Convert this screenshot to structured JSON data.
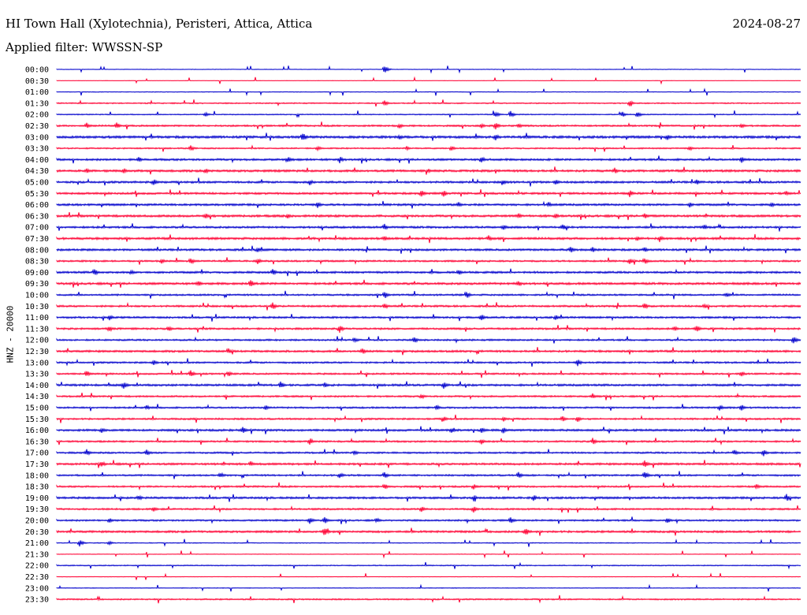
{
  "header": {
    "title": "HI Town Hall (Xylotechnia), Peristeri, Attica, Attica",
    "date": "2024-08-27",
    "filter": "Applied filter: WWSSN-SP"
  },
  "chart_data": {
    "type": "line",
    "ylabel": "HNZ - 20000",
    "colors": [
      "#0000cc",
      "#ff0033"
    ],
    "rows": [
      "00:00",
      "00:30",
      "01:00",
      "01:30",
      "02:00",
      "02:30",
      "03:00",
      "03:30",
      "04:00",
      "04:30",
      "05:00",
      "05:30",
      "06:00",
      "06:30",
      "07:00",
      "07:30",
      "08:00",
      "08:30",
      "09:00",
      "09:30",
      "10:00",
      "10:30",
      "11:00",
      "11:30",
      "12:00",
      "12:30",
      "13:00",
      "13:30",
      "14:00",
      "14:30",
      "15:00",
      "15:30",
      "16:00",
      "16:30",
      "17:00",
      "17:30",
      "18:00",
      "18:30",
      "19:00",
      "19:30",
      "20:00",
      "20:30",
      "21:00",
      "21:30",
      "22:00",
      "22:30",
      "23:00",
      "23:30"
    ],
    "noise_level": [
      0.3,
      0.2,
      0.4,
      0.7,
      0.6,
      1.0,
      1.4,
      0.8,
      1.2,
      1.3,
      1.2,
      1.2,
      1.2,
      1.3,
      1.2,
      1.3,
      1.2,
      1.0,
      1.2,
      1.3,
      1.0,
      1.1,
      1.1,
      1.1,
      1.0,
      1.2,
      1.0,
      1.0,
      1.2,
      1.0,
      1.0,
      1.0,
      1.2,
      1.0,
      1.0,
      1.2,
      1.0,
      1.0,
      1.2,
      1.0,
      1.0,
      1.2,
      0.5,
      0.3,
      0.6,
      0.3,
      0.4,
      0.8
    ],
    "events": [
      [
        [
          0.44,
          6
        ]
      ],
      [],
      [],
      [
        [
          0.44,
          5
        ],
        [
          0.77,
          4
        ]
      ],
      [
        [
          0.2,
          3
        ],
        [
          0.59,
          4
        ],
        [
          0.61,
          5
        ],
        [
          0.76,
          4
        ],
        [
          0.78,
          5
        ]
      ],
      [
        [
          0.04,
          4
        ],
        [
          0.08,
          5
        ],
        [
          0.46,
          4
        ],
        [
          0.57,
          4
        ],
        [
          0.59,
          5
        ],
        [
          0.62,
          4
        ],
        [
          0.92,
          4
        ]
      ],
      [
        [
          0.33,
          7
        ],
        [
          0.46,
          4
        ],
        [
          0.59,
          5
        ],
        [
          0.82,
          5
        ]
      ],
      [
        [
          0.18,
          4
        ],
        [
          0.35,
          4
        ],
        [
          0.47,
          3
        ],
        [
          0.53,
          4
        ],
        [
          0.85,
          4
        ]
      ],
      [
        [
          0.11,
          4
        ],
        [
          0.31,
          5
        ],
        [
          0.38,
          5
        ],
        [
          0.57,
          6
        ],
        [
          0.92,
          5
        ]
      ],
      [
        [
          0.04,
          4
        ],
        [
          0.09,
          4
        ],
        [
          0.2,
          4
        ],
        [
          0.5,
          3
        ],
        [
          0.75,
          4
        ]
      ],
      [
        [
          0.13,
          5
        ],
        [
          0.34,
          4
        ],
        [
          0.6,
          4
        ],
        [
          0.67,
          5
        ],
        [
          0.86,
          4
        ]
      ],
      [
        [
          0.49,
          6
        ],
        [
          0.52,
          5
        ],
        [
          0.77,
          5
        ],
        [
          0.98,
          4
        ]
      ],
      [
        [
          0.35,
          5
        ],
        [
          0.54,
          4
        ],
        [
          0.66,
          5
        ],
        [
          0.85,
          4
        ],
        [
          0.96,
          4
        ]
      ],
      [
        [
          0.2,
          4
        ],
        [
          0.31,
          4
        ],
        [
          0.62,
          4
        ],
        [
          0.67,
          4
        ],
        [
          0.79,
          4
        ]
      ],
      [
        [
          0.44,
          5
        ],
        [
          0.6,
          4
        ],
        [
          0.68,
          5
        ],
        [
          0.87,
          4
        ]
      ],
      [
        [
          0.44,
          4
        ],
        [
          0.58,
          5
        ],
        [
          0.78,
          4
        ],
        [
          0.81,
          5
        ]
      ],
      [
        [
          0.27,
          4
        ],
        [
          0.69,
          5
        ],
        [
          0.72,
          4
        ],
        [
          0.79,
          4
        ]
      ],
      [
        [
          0.14,
          4
        ],
        [
          0.18,
          5
        ],
        [
          0.27,
          4
        ],
        [
          0.77,
          4
        ],
        [
          0.79,
          5
        ]
      ],
      [
        [
          0.05,
          6
        ],
        [
          0.1,
          4
        ],
        [
          0.29,
          5
        ],
        [
          0.54,
          4
        ]
      ],
      [
        [
          0.19,
          5
        ],
        [
          0.26,
          6
        ],
        [
          0.62,
          5
        ]
      ],
      [
        [
          0.44,
          6
        ],
        [
          0.55,
          6
        ],
        [
          0.9,
          4
        ]
      ],
      [
        [
          0.29,
          5
        ],
        [
          0.44,
          5
        ],
        [
          0.79,
          5
        ],
        [
          0.87,
          4
        ]
      ],
      [
        [
          0.07,
          5
        ],
        [
          0.57,
          5
        ],
        [
          0.67,
          4
        ]
      ],
      [
        [
          0.07,
          5
        ],
        [
          0.15,
          4
        ],
        [
          0.38,
          6
        ],
        [
          0.83,
          4
        ],
        [
          0.86,
          5
        ]
      ],
      [
        [
          0.4,
          4
        ],
        [
          0.48,
          5
        ],
        [
          0.99,
          6
        ]
      ],
      [
        [
          0.23,
          5
        ],
        [
          0.41,
          5
        ]
      ],
      [
        [
          0.13,
          4
        ],
        [
          0.7,
          5
        ]
      ],
      [
        [
          0.04,
          5
        ],
        [
          0.18,
          5
        ],
        [
          0.23,
          5
        ],
        [
          0.92,
          4
        ]
      ],
      [
        [
          0.09,
          5
        ],
        [
          0.3,
          6
        ],
        [
          0.36,
          4
        ],
        [
          0.52,
          5
        ]
      ],
      [
        [
          0.49,
          4
        ],
        [
          0.72,
          4
        ]
      ],
      [
        [
          0.12,
          4
        ],
        [
          0.28,
          4
        ],
        [
          0.51,
          4
        ],
        [
          0.89,
          5
        ],
        [
          0.92,
          5
        ]
      ],
      [
        [
          0.52,
          4
        ],
        [
          0.6,
          4
        ],
        [
          0.68,
          4
        ],
        [
          0.7,
          4
        ]
      ],
      [
        [
          0.06,
          4
        ],
        [
          0.25,
          5
        ],
        [
          0.53,
          5
        ],
        [
          0.57,
          5
        ],
        [
          0.6,
          5
        ]
      ],
      [
        [
          0.34,
          5
        ],
        [
          0.57,
          5
        ],
        [
          0.72,
          5
        ]
      ],
      [
        [
          0.04,
          5
        ],
        [
          0.12,
          5
        ],
        [
          0.4,
          4
        ],
        [
          0.91,
          5
        ],
        [
          0.95,
          5
        ]
      ],
      [
        [
          0.06,
          5
        ],
        [
          0.26,
          4
        ],
        [
          0.79,
          6
        ]
      ],
      [
        [
          0.22,
          4
        ],
        [
          0.38,
          5
        ],
        [
          0.44,
          5
        ],
        [
          0.62,
          5
        ],
        [
          0.79,
          6
        ]
      ],
      [
        [
          0.44,
          5
        ],
        [
          0.56,
          4
        ],
        [
          0.94,
          4
        ]
      ],
      [
        [
          0.11,
          4
        ],
        [
          0.56,
          5
        ],
        [
          0.64,
          5
        ],
        [
          0.98,
          6
        ]
      ],
      [
        [
          0.13,
          4
        ],
        [
          0.49,
          5
        ],
        [
          0.56,
          5
        ]
      ],
      [
        [
          0.07,
          4
        ],
        [
          0.34,
          5
        ],
        [
          0.36,
          5
        ],
        [
          0.43,
          4
        ],
        [
          0.61,
          5
        ],
        [
          0.82,
          5
        ]
      ],
      [
        [
          0.36,
          6
        ],
        [
          0.63,
          6
        ]
      ],
      [
        [
          0.03,
          6
        ],
        [
          0.07,
          3
        ]
      ],
      [],
      [],
      [],
      [],
      []
    ]
  }
}
